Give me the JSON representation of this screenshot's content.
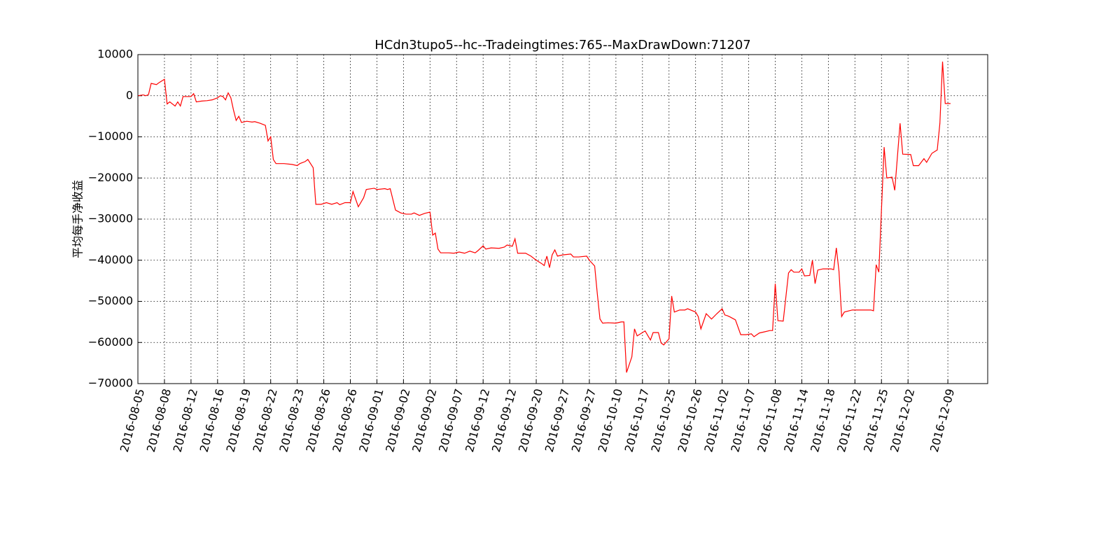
{
  "chart_data": {
    "type": "line",
    "title": "HCdn3tupo5--hc--Tradeingtimes:765--MaxDrawDown:71207",
    "y_label": "平均每手净收益",
    "grid": true,
    "xlim": [
      0,
      320
    ],
    "xticks": [
      {
        "value": 0,
        "label": "2016-08-05"
      },
      {
        "value": 10,
        "label": "2016-08-08"
      },
      {
        "value": 20,
        "label": "2016-08-12"
      },
      {
        "value": 30,
        "label": "2016-08-16"
      },
      {
        "value": 40,
        "label": "2016-08-19"
      },
      {
        "value": 50,
        "label": "2016-08-22"
      },
      {
        "value": 60,
        "label": "2016-08-23"
      },
      {
        "value": 70,
        "label": "2016-08-26"
      },
      {
        "value": 80,
        "label": "2016-08-26"
      },
      {
        "value": 90,
        "label": "2016-09-01"
      },
      {
        "value": 100,
        "label": "2016-09-02"
      },
      {
        "value": 110,
        "label": "2016-09-02"
      },
      {
        "value": 120,
        "label": "2016-09-07"
      },
      {
        "value": 130,
        "label": "2016-09-12"
      },
      {
        "value": 140,
        "label": "2016-09-12"
      },
      {
        "value": 150,
        "label": "2016-09-20"
      },
      {
        "value": 160,
        "label": "2016-09-27"
      },
      {
        "value": 170,
        "label": "2016-09-27"
      },
      {
        "value": 180,
        "label": "2016-10-10"
      },
      {
        "value": 190,
        "label": "2016-10-17"
      },
      {
        "value": 200,
        "label": "2016-10-25"
      },
      {
        "value": 210,
        "label": "2016-10-26"
      },
      {
        "value": 220,
        "label": "2016-11-02"
      },
      {
        "value": 230,
        "label": "2016-11-07"
      },
      {
        "value": 240,
        "label": "2016-11-08"
      },
      {
        "value": 250,
        "label": "2016-11-14"
      },
      {
        "value": 260,
        "label": "2016-11-18"
      },
      {
        "value": 270,
        "label": "2016-11-22"
      },
      {
        "value": 280,
        "label": "2016-11-25"
      },
      {
        "value": 290,
        "label": "2016-12-02"
      },
      {
        "value": 305,
        "label": "2016-12-09"
      }
    ],
    "ylim": [
      -70000,
      10000
    ],
    "yticks": [
      {
        "value": 10000,
        "label": "10000"
      },
      0,
      {
        "value": -10000,
        "label": "−10000"
      },
      {
        "value": -20000,
        "label": "−20000"
      },
      {
        "value": -30000,
        "label": "−30000"
      },
      {
        "value": -40000,
        "label": "−40000"
      },
      {
        "value": -50000,
        "label": "−50000"
      },
      {
        "value": -60000,
        "label": "−60000"
      },
      {
        "value": -70000,
        "label": "−70000"
      }
    ],
    "x": [
      0,
      2,
      3,
      4,
      5,
      7,
      8,
      10,
      11,
      12,
      14,
      15,
      16,
      17,
      20,
      21,
      22,
      24,
      26,
      28,
      30,
      31,
      32,
      33,
      34,
      35,
      36,
      37,
      38,
      39,
      41,
      43,
      44,
      46,
      48,
      49,
      50,
      51,
      52,
      55,
      58,
      60,
      61,
      63,
      64,
      66,
      67,
      69,
      71,
      73,
      75,
      76,
      78,
      80,
      81,
      83,
      85,
      86,
      89,
      90,
      93,
      94,
      95,
      97,
      99,
      101,
      103,
      104,
      106,
      108,
      110,
      111,
      112,
      113,
      114,
      117,
      119,
      121,
      123,
      125,
      127,
      128,
      130,
      131,
      133,
      136,
      138,
      139,
      141,
      142,
      143,
      146,
      148,
      150,
      152,
      153,
      154,
      155,
      156,
      157,
      158,
      160,
      163,
      164,
      166,
      169,
      170,
      172,
      173,
      174,
      175,
      177,
      180,
      182,
      183,
      184,
      186,
      187,
      188,
      190,
      191,
      193,
      194,
      196,
      197,
      198,
      200,
      201,
      202,
      204,
      206,
      207,
      210,
      211,
      212,
      214,
      216,
      218,
      220,
      221,
      222,
      223,
      225,
      227,
      229,
      231,
      232,
      234,
      236,
      238,
      239,
      240,
      241,
      243,
      245,
      246,
      247,
      249,
      250,
      251,
      253,
      254,
      255,
      256,
      258,
      261,
      262,
      263,
      264,
      265,
      266,
      269,
      272,
      276,
      277,
      278,
      279,
      281,
      282,
      284,
      285,
      287,
      288,
      291,
      292,
      294,
      296,
      297,
      299,
      301,
      302,
      303,
      304,
      306
    ],
    "series": [
      {
        "color": "#ff0000",
        "values": [
          0,
          200,
          0,
          300,
          3000,
          2700,
          3200,
          4000,
          -2000,
          -1500,
          -2500,
          -1500,
          -2500,
          -200,
          -200,
          500,
          -1500,
          -1300,
          -1200,
          -1000,
          -500,
          0,
          -200,
          -1000,
          700,
          -500,
          -3500,
          -6000,
          -5000,
          -6500,
          -6200,
          -6400,
          -6300,
          -6700,
          -7200,
          -11000,
          -10000,
          -15500,
          -16500,
          -16500,
          -16700,
          -17000,
          -16500,
          -16000,
          -15500,
          -17500,
          -26400,
          -26400,
          -26000,
          -26400,
          -26000,
          -26500,
          -26000,
          -26000,
          -23300,
          -27000,
          -24800,
          -22800,
          -22500,
          -22800,
          -22600,
          -22800,
          -22600,
          -27800,
          -28500,
          -28800,
          -28800,
          -28500,
          -29100,
          -28600,
          -28300,
          -33900,
          -33400,
          -37300,
          -38200,
          -38200,
          -38300,
          -38000,
          -38300,
          -37800,
          -38200,
          -37700,
          -36500,
          -37300,
          -37000,
          -37100,
          -36800,
          -36300,
          -36600,
          -34800,
          -38300,
          -38300,
          -39000,
          -40000,
          -40800,
          -41300,
          -39000,
          -41800,
          -38700,
          -37500,
          -39000,
          -38700,
          -38500,
          -39200,
          -39200,
          -39000,
          -40000,
          -41400,
          -48200,
          -54300,
          -55300,
          -55200,
          -55300,
          -55000,
          -55000,
          -67300,
          -63500,
          -56700,
          -58400,
          -57600,
          -57200,
          -59400,
          -57600,
          -57600,
          -60100,
          -60600,
          -59100,
          -48700,
          -52600,
          -52100,
          -52100,
          -51800,
          -52600,
          -53700,
          -56700,
          -53000,
          -54300,
          -53000,
          -51800,
          -53300,
          -53500,
          -53800,
          -54500,
          -58100,
          -58100,
          -57900,
          -58600,
          -57700,
          -57400,
          -57100,
          -57100,
          -45700,
          -54700,
          -54800,
          -43100,
          -42300,
          -42900,
          -42900,
          -42100,
          -43800,
          -43700,
          -40000,
          -45700,
          -42400,
          -42100,
          -42100,
          -42300,
          -37000,
          -42700,
          -53700,
          -52600,
          -52100,
          -52100,
          -52100,
          -52300,
          -41100,
          -42900,
          -12500,
          -20000,
          -19800,
          -23000,
          -6700,
          -14200,
          -14300,
          -17000,
          -17000,
          -15300,
          -16200,
          -14000,
          -13200,
          -6700,
          8300,
          -1900,
          -1900
        ]
      }
    ]
  }
}
